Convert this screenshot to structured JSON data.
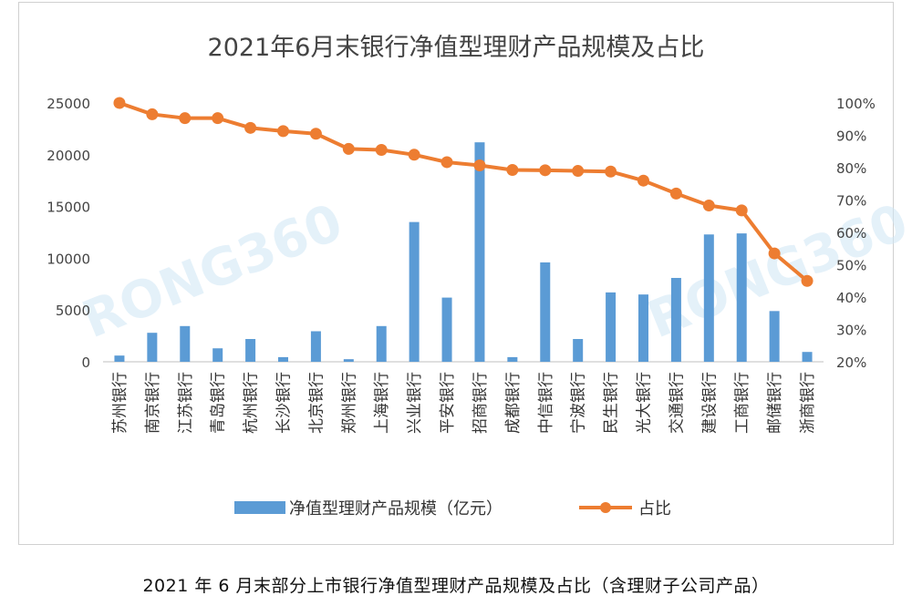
{
  "chart_data": {
    "type": "bar+line",
    "title": "2021年6月末银行净值型理财产品规模及占比",
    "categories": [
      "苏州银行",
      "南京银行",
      "江苏银行",
      "青岛银行",
      "杭州银行",
      "长沙银行",
      "北京银行",
      "郑州银行",
      "上海银行",
      "兴业银行",
      "平安银行",
      "招商银行",
      "成都银行",
      "中信银行",
      "宁波银行",
      "民生银行",
      "光大银行",
      "交通银行",
      "建设银行",
      "工商银行",
      "邮储银行",
      "浙商银行"
    ],
    "series": [
      {
        "name": "净值型理财产品规模（亿元）",
        "type": "bar",
        "axis": "left",
        "color": "#5B9BD5",
        "values": [
          600,
          2800,
          3450,
          1300,
          2200,
          450,
          2950,
          250,
          3450,
          13500,
          6200,
          21200,
          450,
          9600,
          2200,
          6700,
          6500,
          8100,
          12300,
          12400,
          4900,
          950
        ]
      },
      {
        "name": "占比",
        "type": "line",
        "axis": "right",
        "color": "#ED7D31",
        "values": [
          100,
          96.5,
          95.3,
          95.3,
          92.3,
          91.3,
          90.5,
          85.8,
          85.5,
          84,
          81.7,
          80.7,
          79.3,
          79.2,
          79,
          78.8,
          76,
          72,
          68.3,
          66.8,
          53.5,
          45
        ]
      }
    ],
    "y_left": {
      "min": 0,
      "max": 25000,
      "ticks": [
        "0",
        "5000",
        "10000",
        "15000",
        "20000",
        "25000"
      ]
    },
    "y_right": {
      "min": 20,
      "max": 100,
      "ticks": [
        "20%",
        "30%",
        "40%",
        "50%",
        "60%",
        "70%",
        "80%",
        "90%",
        "100%"
      ]
    },
    "legend_position": "bottom",
    "grid": false
  },
  "watermark": "RONG360",
  "caption": "2021 年 6 月末部分上市银行净值型理财产品规模及占比（含理财子公司产品）"
}
